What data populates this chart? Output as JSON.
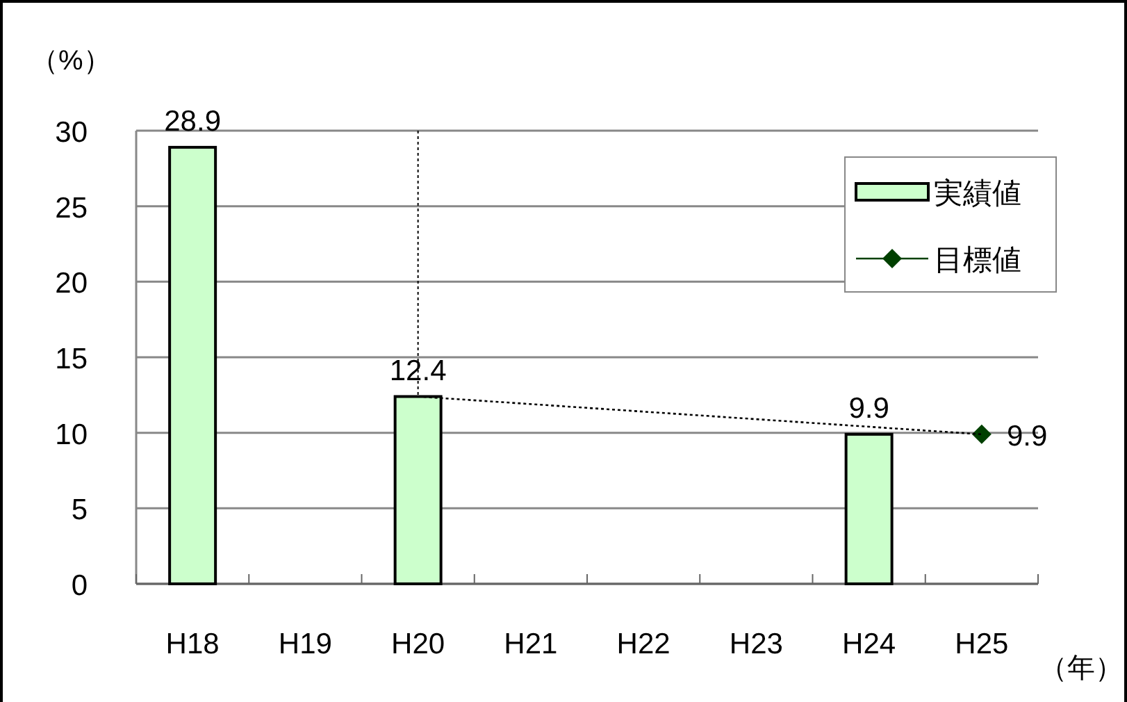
{
  "chart_data": {
    "type": "bar",
    "ylabel": "（%）",
    "xlabel": "（年）",
    "categories": [
      "H18",
      "H19",
      "H20",
      "H21",
      "H22",
      "H23",
      "H24",
      "H25"
    ],
    "series": [
      {
        "name": "実績値",
        "color": "#ccffcc",
        "values": [
          28.9,
          null,
          12.4,
          null,
          null,
          null,
          9.9,
          null
        ],
        "value_labels": [
          "28.9",
          null,
          "12.4",
          null,
          null,
          null,
          "9.9",
          null
        ]
      },
      {
        "name": "目標値",
        "type": "line",
        "color": "#004000",
        "marker": "diamond",
        "values": [
          null,
          null,
          null,
          null,
          null,
          null,
          null,
          9.9
        ],
        "value_labels": [
          null,
          null,
          null,
          null,
          null,
          null,
          null,
          "9.9"
        ]
      },
      {
        "type": "line",
        "color": "#000000",
        "marker": "none",
        "line_style": "dotted",
        "values": [
          null,
          null,
          12.4,
          null,
          null,
          null,
          null,
          9.9
        ]
      }
    ],
    "ref_lines": [
      {
        "axis": "x",
        "value": "H20",
        "color": "#000000",
        "line_style": "dotted"
      }
    ],
    "ylim": [
      0,
      30
    ],
    "yticks": [
      0,
      5,
      10,
      15,
      20,
      25,
      30
    ],
    "grid": "y",
    "legend": "top right"
  }
}
